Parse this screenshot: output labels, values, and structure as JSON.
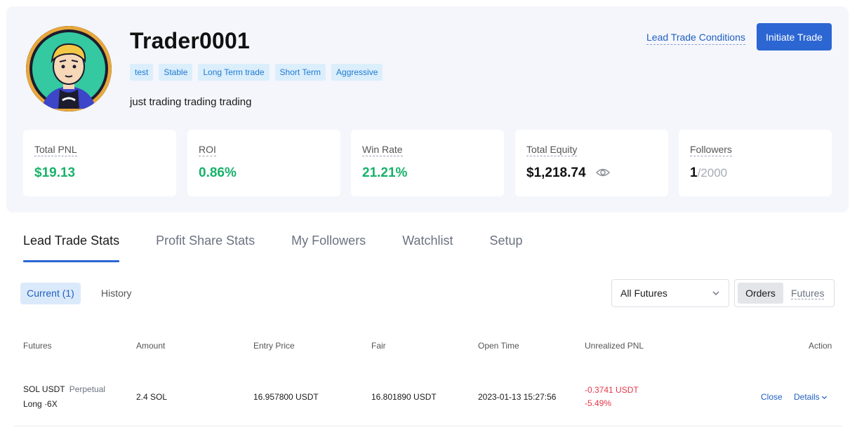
{
  "profile": {
    "name": "Trader0001",
    "tags": [
      "test",
      "Stable",
      "Long Term trade",
      "Short Term",
      "Aggressive"
    ],
    "bio": "just trading trading trading",
    "lead_conditions_label": "Lead Trade Conditions",
    "initiate_label": "Initiate Trade"
  },
  "stats": {
    "total_pnl": {
      "label": "Total PNL",
      "value": "$19.13"
    },
    "roi": {
      "label": "ROI",
      "value": "0.86%"
    },
    "win_rate": {
      "label": "Win Rate",
      "value": "21.21%"
    },
    "total_equity": {
      "label": "Total Equity",
      "value": "$1,218.74"
    },
    "followers": {
      "label": "Followers",
      "current": "1",
      "max": "/2000"
    }
  },
  "tabs": [
    {
      "label": "Lead Trade Stats",
      "active": true
    },
    {
      "label": "Profit Share Stats"
    },
    {
      "label": "My Followers"
    },
    {
      "label": "Watchlist"
    },
    {
      "label": "Setup"
    }
  ],
  "filters": {
    "current_label": "Current (1)",
    "history_label": "History",
    "select_value": "All Futures",
    "seg_orders": "Orders",
    "seg_futures": "Futures"
  },
  "table": {
    "headers": {
      "futures": "Futures",
      "amount": "Amount",
      "entry_price": "Entry Price",
      "fair": "Fair",
      "open_time": "Open Time",
      "unrealized_pnl": "Unrealized PNL",
      "action": "Action"
    },
    "rows": [
      {
        "symbol": "SOL USDT",
        "contract": "Perpetual",
        "side": "Long ·6X",
        "amount": "2.4 SOL",
        "entry_price": "16.957800 USDT",
        "fair": "16.801890 USDT",
        "open_time": "2023-01-13 15:27:56",
        "pnl": "-0.3741 USDT",
        "pnl_pct": "-5.49%",
        "close_label": "Close",
        "details_label": "Details"
      }
    ]
  },
  "colors": {
    "accent": "#2b66d3",
    "positive": "#17b26a",
    "negative": "#e5364a",
    "card_bg": "#f4f6fb"
  }
}
